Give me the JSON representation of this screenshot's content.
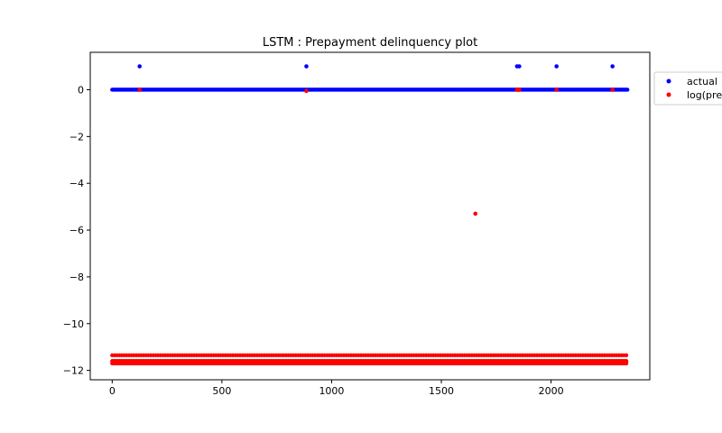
{
  "chart_data": {
    "type": "scatter",
    "title": "LSTM : Prepayment delinquency plot",
    "xlabel": "",
    "ylabel": "",
    "xlim": [
      -100,
      2450
    ],
    "ylim": [
      -12.4,
      1.6
    ],
    "x_ticks": [
      0,
      500,
      1000,
      1500,
      2000
    ],
    "x_tick_labels": [
      "0",
      "500",
      "1000",
      "1500",
      "2000"
    ],
    "y_ticks": [
      0,
      -2,
      -4,
      -6,
      -8,
      -10,
      -12
    ],
    "y_tick_labels": [
      "0",
      "−2",
      "−4",
      "−6",
      "−8",
      "−10",
      "−12"
    ],
    "grid": false,
    "legend_position": "outside-top-right",
    "series": [
      {
        "name": "actual",
        "color": "#0000ff",
        "baseline": {
          "x_start": 0,
          "x_end": 2350,
          "y": 0
        },
        "points": [
          {
            "x": 125,
            "y": 1
          },
          {
            "x": 885,
            "y": 1
          },
          {
            "x": 1845,
            "y": 1
          },
          {
            "x": 1855,
            "y": 1
          },
          {
            "x": 2025,
            "y": 1
          },
          {
            "x": 2280,
            "y": 1
          }
        ]
      },
      {
        "name": "log(pre",
        "color": "#ff0000",
        "bands": [
          {
            "x_start": 0,
            "x_end": 2350,
            "y": -11.7
          },
          {
            "x_start": 0,
            "x_end": 2350,
            "y": -11.6
          },
          {
            "x_start": 0,
            "x_end": 2350,
            "y": -11.35
          }
        ],
        "points": [
          {
            "x": 125,
            "y": 0
          },
          {
            "x": 885,
            "y": -0.05
          },
          {
            "x": 1845,
            "y": 0
          },
          {
            "x": 1855,
            "y": 0
          },
          {
            "x": 2025,
            "y": 0
          },
          {
            "x": 2280,
            "y": 0
          },
          {
            "x": 1655,
            "y": -5.3
          }
        ]
      }
    ]
  }
}
